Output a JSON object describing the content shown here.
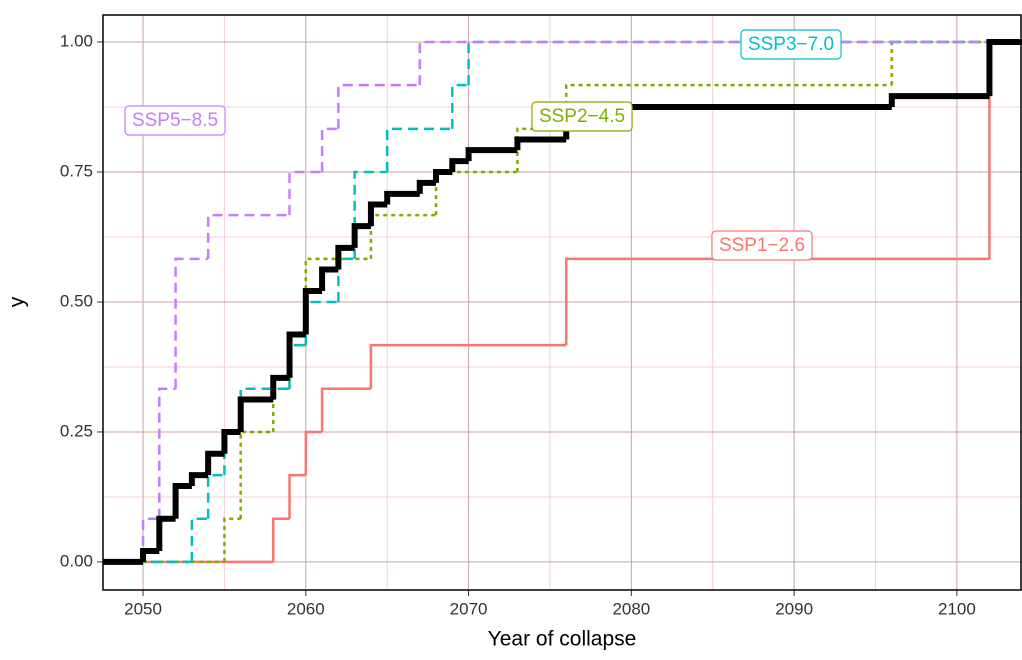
{
  "chart_data": {
    "type": "step",
    "x_label": "Year of collapse",
    "y_label": "y",
    "xlim": [
      2047.54,
      2104.0
    ],
    "ylim": [
      -0.054,
      1.052
    ],
    "xticks": [
      2050,
      2060,
      2070,
      2080,
      2090,
      2100
    ],
    "yticks": [
      {
        "value": 0,
        "label": "0.00"
      },
      {
        "value": 0.25,
        "label": "0.25"
      },
      {
        "value": 0.5,
        "label": "0.50"
      },
      {
        "value": 0.75,
        "label": "0.75"
      },
      {
        "value": 1,
        "label": "1.00"
      }
    ],
    "xminor": [
      2055,
      2065,
      2075,
      2085,
      2095
    ],
    "yminor": [
      0.125,
      0.375,
      0.625,
      0.875
    ],
    "grid": true,
    "grid_color": "#c9a3a6",
    "minor_grid_color": "#f7cdd6",
    "series": [
      {
        "name": "SSP1−2.6",
        "color": "#F8766D",
        "linetype": "solid",
        "width": 2.5,
        "x": [
          2058,
          2059,
          2060,
          2061,
          2064,
          2076,
          2102
        ],
        "values": [
          0.083,
          0.167,
          0.25,
          0.333,
          0.417,
          0.583,
          1.0
        ]
      },
      {
        "name": "SSP2−4.5",
        "color": "#7CAE00",
        "linetype": "dotted",
        "width": 2.5,
        "x": [
          2055,
          2056,
          2058,
          2059,
          2060,
          2064,
          2068,
          2073,
          2076,
          2096
        ],
        "values": [
          0.083,
          0.25,
          0.333,
          0.417,
          0.583,
          0.667,
          0.75,
          0.833,
          0.917,
          1.0
        ]
      },
      {
        "name": "SSP3−7.0",
        "color": "#00BFC4",
        "linetype": "dashed",
        "width": 2.5,
        "x": [
          2053,
          2054,
          2055,
          2056,
          2059,
          2060,
          2062,
          2063,
          2065,
          2069,
          2070
        ],
        "values": [
          0.083,
          0.167,
          0.25,
          0.333,
          0.417,
          0.5,
          0.583,
          0.75,
          0.833,
          0.917,
          1.0
        ]
      },
      {
        "name": "SSP5−8.5",
        "color": "#C77CFF",
        "linetype": "dashed",
        "width": 2.5,
        "x": [
          2050,
          2051,
          2052,
          2054,
          2059,
          2061,
          2062,
          2067
        ],
        "values": [
          0.083,
          0.333,
          0.583,
          0.667,
          0.75,
          0.833,
          0.917,
          1.0
        ]
      },
      {
        "color": "#000000",
        "linetype": "solid",
        "width": 6,
        "x": [
          2050,
          2051,
          2052,
          2053,
          2054,
          2055,
          2056,
          2058,
          2059,
          2060,
          2061,
          2062,
          2063,
          2064,
          2065,
          2067,
          2068,
          2069,
          2070,
          2073,
          2076,
          2096,
          2102
        ],
        "values": [
          0.021,
          0.083,
          0.146,
          0.167,
          0.208,
          0.25,
          0.3125,
          0.354,
          0.4375,
          0.521,
          0.5625,
          0.604,
          0.646,
          0.6875,
          0.708,
          0.729,
          0.75,
          0.771,
          0.792,
          0.8125,
          0.875,
          0.896,
          1.0
        ]
      }
    ]
  }
}
